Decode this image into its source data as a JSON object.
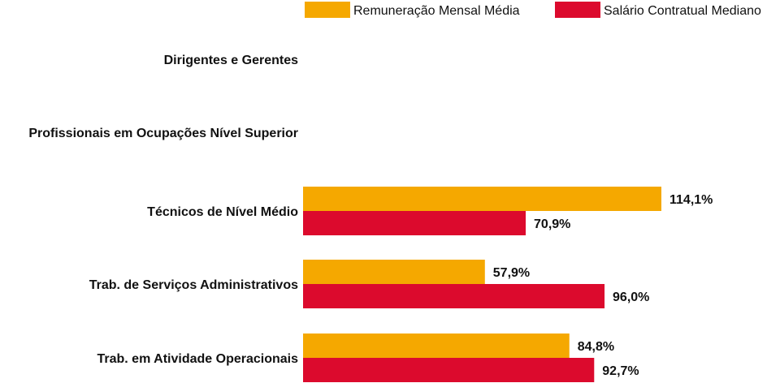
{
  "chart_data": {
    "type": "bar",
    "orientation": "horizontal",
    "categories": [
      "Dirigentes e Gerentes",
      "Profissionais em Ocupações Nível Superior",
      "Técnicos de Nível Médio",
      "Trab. de Serviços Administrativos",
      "Trab. em Atividade Operacionais"
    ],
    "series": [
      {
        "name": "Remuneração Mensal Média",
        "color": "#F5A800",
        "values": [
          null,
          null,
          114.1,
          57.9,
          84.8
        ],
        "labels": [
          "",
          "",
          "114,1%",
          "57,9%",
          "84,8%"
        ]
      },
      {
        "name": "Salário Contratual Mediano",
        "color": "#DC0A2D",
        "values": [
          null,
          null,
          70.9,
          96.0,
          92.7
        ],
        "labels": [
          "",
          "",
          "70,9%",
          "96,0%",
          "92,7%"
        ]
      }
    ],
    "xlim": [
      0,
      114.1
    ],
    "legend": "top-right",
    "grid": false,
    "title": "",
    "xlabel": "",
    "ylabel": ""
  }
}
